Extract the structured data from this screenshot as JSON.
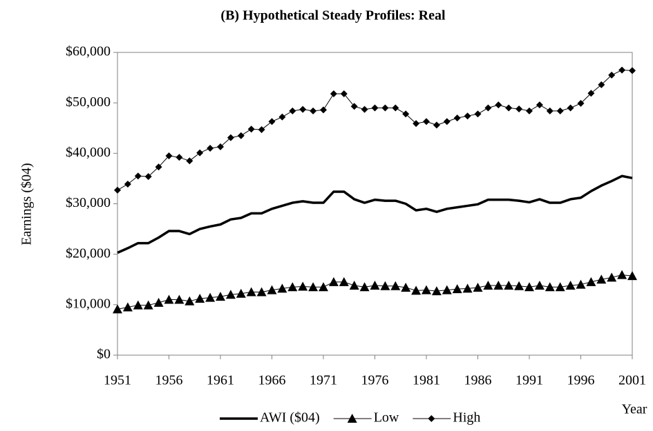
{
  "chart_data": {
    "type": "line",
    "title": "(B) Hypothetical Steady Profiles: Real",
    "y_label": "Earnings ($04)",
    "x_label": "Year",
    "x": [
      1951,
      1952,
      1953,
      1954,
      1955,
      1956,
      1957,
      1958,
      1959,
      1960,
      1961,
      1962,
      1963,
      1964,
      1965,
      1966,
      1967,
      1968,
      1969,
      1970,
      1971,
      1972,
      1973,
      1974,
      1975,
      1976,
      1977,
      1978,
      1979,
      1980,
      1981,
      1982,
      1983,
      1984,
      1985,
      1986,
      1987,
      1988,
      1989,
      1990,
      1991,
      1992,
      1993,
      1994,
      1995,
      1996,
      1997,
      1998,
      1999,
      2000,
      2001
    ],
    "series": [
      {
        "name": "AWI ($04)",
        "color": "#000000",
        "marker": null,
        "values": [
          20300,
          21200,
          22200,
          22200,
          23300,
          24600,
          24600,
          24000,
          25000,
          25500,
          25900,
          26900,
          27200,
          28100,
          28100,
          29000,
          29600,
          30200,
          30500,
          30200,
          30200,
          32400,
          32400,
          30900,
          30200,
          30800,
          30600,
          30600,
          30000,
          28700,
          29000,
          28400,
          29000,
          29300,
          29600,
          29900,
          30800,
          30800,
          30800,
          30600,
          30300,
          30900,
          30200,
          30200,
          30900,
          31200,
          32500,
          33600,
          34500,
          35500,
          35100
        ]
      },
      {
        "name": "Low",
        "color": "#000000",
        "marker": "triangle",
        "values": [
          9100,
          9500,
          9900,
          9900,
          10400,
          11000,
          11000,
          10700,
          11200,
          11400,
          11600,
          12000,
          12200,
          12500,
          12500,
          12900,
          13200,
          13500,
          13600,
          13500,
          13500,
          14500,
          14500,
          13800,
          13500,
          13800,
          13700,
          13700,
          13400,
          12800,
          12900,
          12700,
          12900,
          13100,
          13200,
          13400,
          13800,
          13800,
          13800,
          13700,
          13500,
          13800,
          13500,
          13500,
          13800,
          14000,
          14500,
          15000,
          15400,
          15900,
          15700
        ]
      },
      {
        "name": "High",
        "color": "#000000",
        "marker": "diamond",
        "values": [
          32700,
          33900,
          35500,
          35400,
          37300,
          39500,
          39200,
          38500,
          40100,
          41000,
          41300,
          43100,
          43500,
          44800,
          44700,
          46300,
          47200,
          48400,
          48700,
          48400,
          48600,
          51800,
          51800,
          49300,
          48700,
          49000,
          49000,
          49000,
          47800,
          45900,
          46300,
          45600,
          46300,
          47000,
          47400,
          47800,
          49000,
          49600,
          49000,
          48800,
          48400,
          49600,
          48400,
          48400,
          49000,
          49900,
          51900,
          53600,
          55500,
          56500,
          56400
        ]
      }
    ],
    "xlim": [
      1951,
      2001
    ],
    "xticks": [
      1951,
      1956,
      1961,
      1966,
      1971,
      1976,
      1981,
      1986,
      1991,
      1996,
      2001
    ],
    "ylim": [
      0,
      60000
    ],
    "yticks": [
      {
        "value": 0,
        "label": "$0"
      },
      {
        "value": 10000,
        "label": "$10,000"
      },
      {
        "value": 20000,
        "label": "$20,000"
      },
      {
        "value": 30000,
        "label": "$30,000"
      },
      {
        "value": 40000,
        "label": "$40,000"
      },
      {
        "value": 50000,
        "label": "$50,000"
      },
      {
        "value": 60000,
        "label": "$60,000"
      }
    ],
    "grid": false,
    "legend": "bottom"
  }
}
